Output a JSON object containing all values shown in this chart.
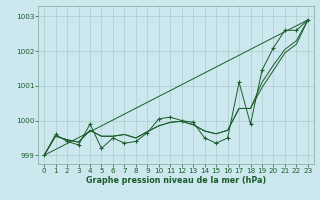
{
  "xlabel": "Graphe pression niveau de la mer (hPa)",
  "bg_color": "#cce8ee",
  "grid_color": "#aacccc",
  "line_color": "#1a5c2a",
  "x": [
    0,
    1,
    2,
    3,
    4,
    5,
    6,
    7,
    8,
    9,
    10,
    11,
    12,
    13,
    14,
    15,
    16,
    17,
    18,
    19,
    20,
    21,
    22,
    23
  ],
  "series_main": [
    999.0,
    999.6,
    999.4,
    999.3,
    999.9,
    999.2,
    999.5,
    999.35,
    999.4,
    999.65,
    1000.05,
    1000.1,
    1000.0,
    999.95,
    999.5,
    999.35,
    999.5,
    1001.1,
    999.9,
    1001.45,
    1002.1,
    1002.6,
    1002.6,
    1002.9
  ],
  "series_smooth1": [
    999.0,
    999.55,
    999.45,
    999.38,
    999.72,
    999.55,
    999.55,
    999.6,
    999.5,
    999.68,
    999.85,
    999.95,
    999.98,
    999.88,
    999.7,
    999.62,
    999.72,
    1000.35,
    1000.35,
    1000.95,
    1001.45,
    1001.95,
    1002.2,
    1002.9
  ],
  "series_smooth2": [
    999.0,
    999.55,
    999.45,
    999.38,
    999.72,
    999.55,
    999.55,
    999.6,
    999.5,
    999.68,
    999.85,
    999.95,
    999.98,
    999.88,
    999.7,
    999.62,
    999.72,
    1000.35,
    1000.35,
    1001.1,
    1001.6,
    1002.05,
    1002.3,
    1002.9
  ],
  "trend_x": [
    0,
    23
  ],
  "trend_y": [
    999.0,
    1002.9
  ],
  "ylim": [
    998.75,
    1003.3
  ],
  "yticks": [
    999,
    1000,
    1001,
    1002,
    1003
  ],
  "xticks": [
    0,
    1,
    2,
    3,
    4,
    5,
    6,
    7,
    8,
    9,
    10,
    11,
    12,
    13,
    14,
    15,
    16,
    17,
    18,
    19,
    20,
    21,
    22,
    23
  ]
}
